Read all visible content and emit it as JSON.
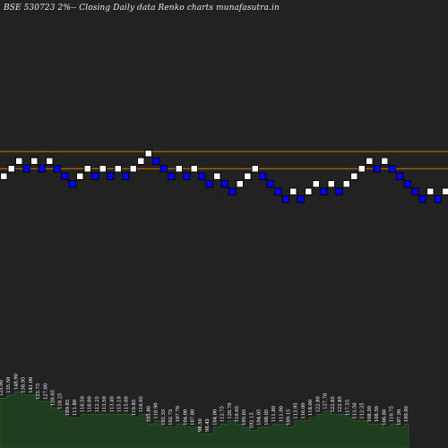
{
  "chart_data": {
    "type": "renko",
    "title": "BSE 530723 2%-- Closing Daily data Renko charts munafasutra.in",
    "colors": {
      "background": "#222222",
      "up_brick": "#ffffff",
      "down_brick": "#0000ff",
      "brick_border": "#000000",
      "reference_line": "#cc7a00",
      "volume_fill": "#1f3d1f",
      "volume_stroke": "#2f6a2f",
      "label_text": "#ffffff"
    },
    "bricks": [
      {
        "dir": "up",
        "level": 0
      },
      {
        "dir": "up",
        "level": 1
      },
      {
        "dir": "up",
        "level": 2
      },
      {
        "dir": "down",
        "level": 1
      },
      {
        "dir": "up",
        "level": 2
      },
      {
        "dir": "down",
        "level": 1
      },
      {
        "dir": "up",
        "level": 2
      },
      {
        "dir": "down",
        "level": 1
      },
      {
        "dir": "down",
        "level": 0
      },
      {
        "dir": "down",
        "level": -1
      },
      {
        "dir": "up",
        "level": 0
      },
      {
        "dir": "up",
        "level": 1
      },
      {
        "dir": "down",
        "level": 0
      },
      {
        "dir": "up",
        "level": 1
      },
      {
        "dir": "down",
        "level": 0
      },
      {
        "dir": "up",
        "level": 1
      },
      {
        "dir": "down",
        "level": 0
      },
      {
        "dir": "up",
        "level": 1
      },
      {
        "dir": "up",
        "level": 2
      },
      {
        "dir": "up",
        "level": 3
      },
      {
        "dir": "down",
        "level": 2
      },
      {
        "dir": "down",
        "level": 1
      },
      {
        "dir": "down",
        "level": 0
      },
      {
        "dir": "up",
        "level": 1
      },
      {
        "dir": "down",
        "level": 0
      },
      {
        "dir": "up",
        "level": 1
      },
      {
        "dir": "down",
        "level": 0
      },
      {
        "dir": "down",
        "level": -1
      },
      {
        "dir": "up",
        "level": 0
      },
      {
        "dir": "down",
        "level": -1
      },
      {
        "dir": "down",
        "level": -2
      },
      {
        "dir": "up",
        "level": -1
      },
      {
        "dir": "up",
        "level": 0
      },
      {
        "dir": "up",
        "level": 1
      },
      {
        "dir": "down",
        "level": 0
      },
      {
        "dir": "down",
        "level": -1
      },
      {
        "dir": "down",
        "level": -2
      },
      {
        "dir": "down",
        "level": -3
      },
      {
        "dir": "up",
        "level": -2
      },
      {
        "dir": "down",
        "level": -3
      },
      {
        "dir": "up",
        "level": -2
      },
      {
        "dir": "up",
        "level": -1
      },
      {
        "dir": "down",
        "level": -2
      },
      {
        "dir": "up",
        "level": -1
      },
      {
        "dir": "down",
        "level": -2
      },
      {
        "dir": "up",
        "level": -1
      },
      {
        "dir": "up",
        "level": 0
      },
      {
        "dir": "up",
        "level": 1
      },
      {
        "dir": "up",
        "level": 2
      },
      {
        "dir": "down",
        "level": 1
      },
      {
        "dir": "up",
        "level": 2
      },
      {
        "dir": "down",
        "level": 1
      },
      {
        "dir": "down",
        "level": 0
      },
      {
        "dir": "down",
        "level": -1
      },
      {
        "dir": "down",
        "level": -2
      },
      {
        "dir": "down",
        "level": -3
      },
      {
        "dir": "up",
        "level": -2
      },
      {
        "dir": "down",
        "level": -3
      },
      {
        "dir": "up",
        "level": -2
      }
    ],
    "reference_lines": {
      "upper_level": 2.75,
      "lower_level": 0.5
    },
    "volume_labels": [
      "125.90",
      "135.50",
      "148.90",
      "138.95",
      "141.00",
      "125.75",
      "127.00",
      "120.65",
      "118.25",
      "109.85",
      "111.80",
      "116.50",
      "116.00",
      "112.25",
      "113.50",
      "113.40",
      "115.10",
      "115.00",
      "110.85",
      "116.95",
      "105.80",
      "110.90",
      "102.55",
      "102.75",
      "107.70",
      "104.00",
      "107.80",
      "98.50",
      "98.45",
      "104.00",
      "112.75",
      "120.70",
      "110.65",
      "105.65",
      "102.15",
      "104.05",
      "108.05",
      "111.80",
      "111.00",
      "109.15",
      "113.95",
      "116.00",
      "118.00",
      "122.80",
      "127.70",
      "122.85",
      "122.85",
      "117.55",
      "113.50",
      "112.25",
      "108.50",
      "108.50",
      "106.80",
      "110.75",
      "107.50",
      "109.95"
    ],
    "volume_values": [
      25,
      26,
      27,
      26,
      26,
      24,
      24,
      22,
      21,
      19,
      19,
      20,
      20,
      20,
      20,
      20,
      20,
      20,
      19,
      20,
      17,
      18,
      16,
      16,
      17,
      16,
      16,
      14,
      14,
      16,
      17,
      18,
      17,
      16,
      15,
      16,
      16,
      17,
      17,
      16,
      18,
      18,
      19,
      20,
      21,
      20,
      20,
      19,
      18,
      18,
      17,
      17,
      16,
      17,
      16,
      17
    ]
  }
}
